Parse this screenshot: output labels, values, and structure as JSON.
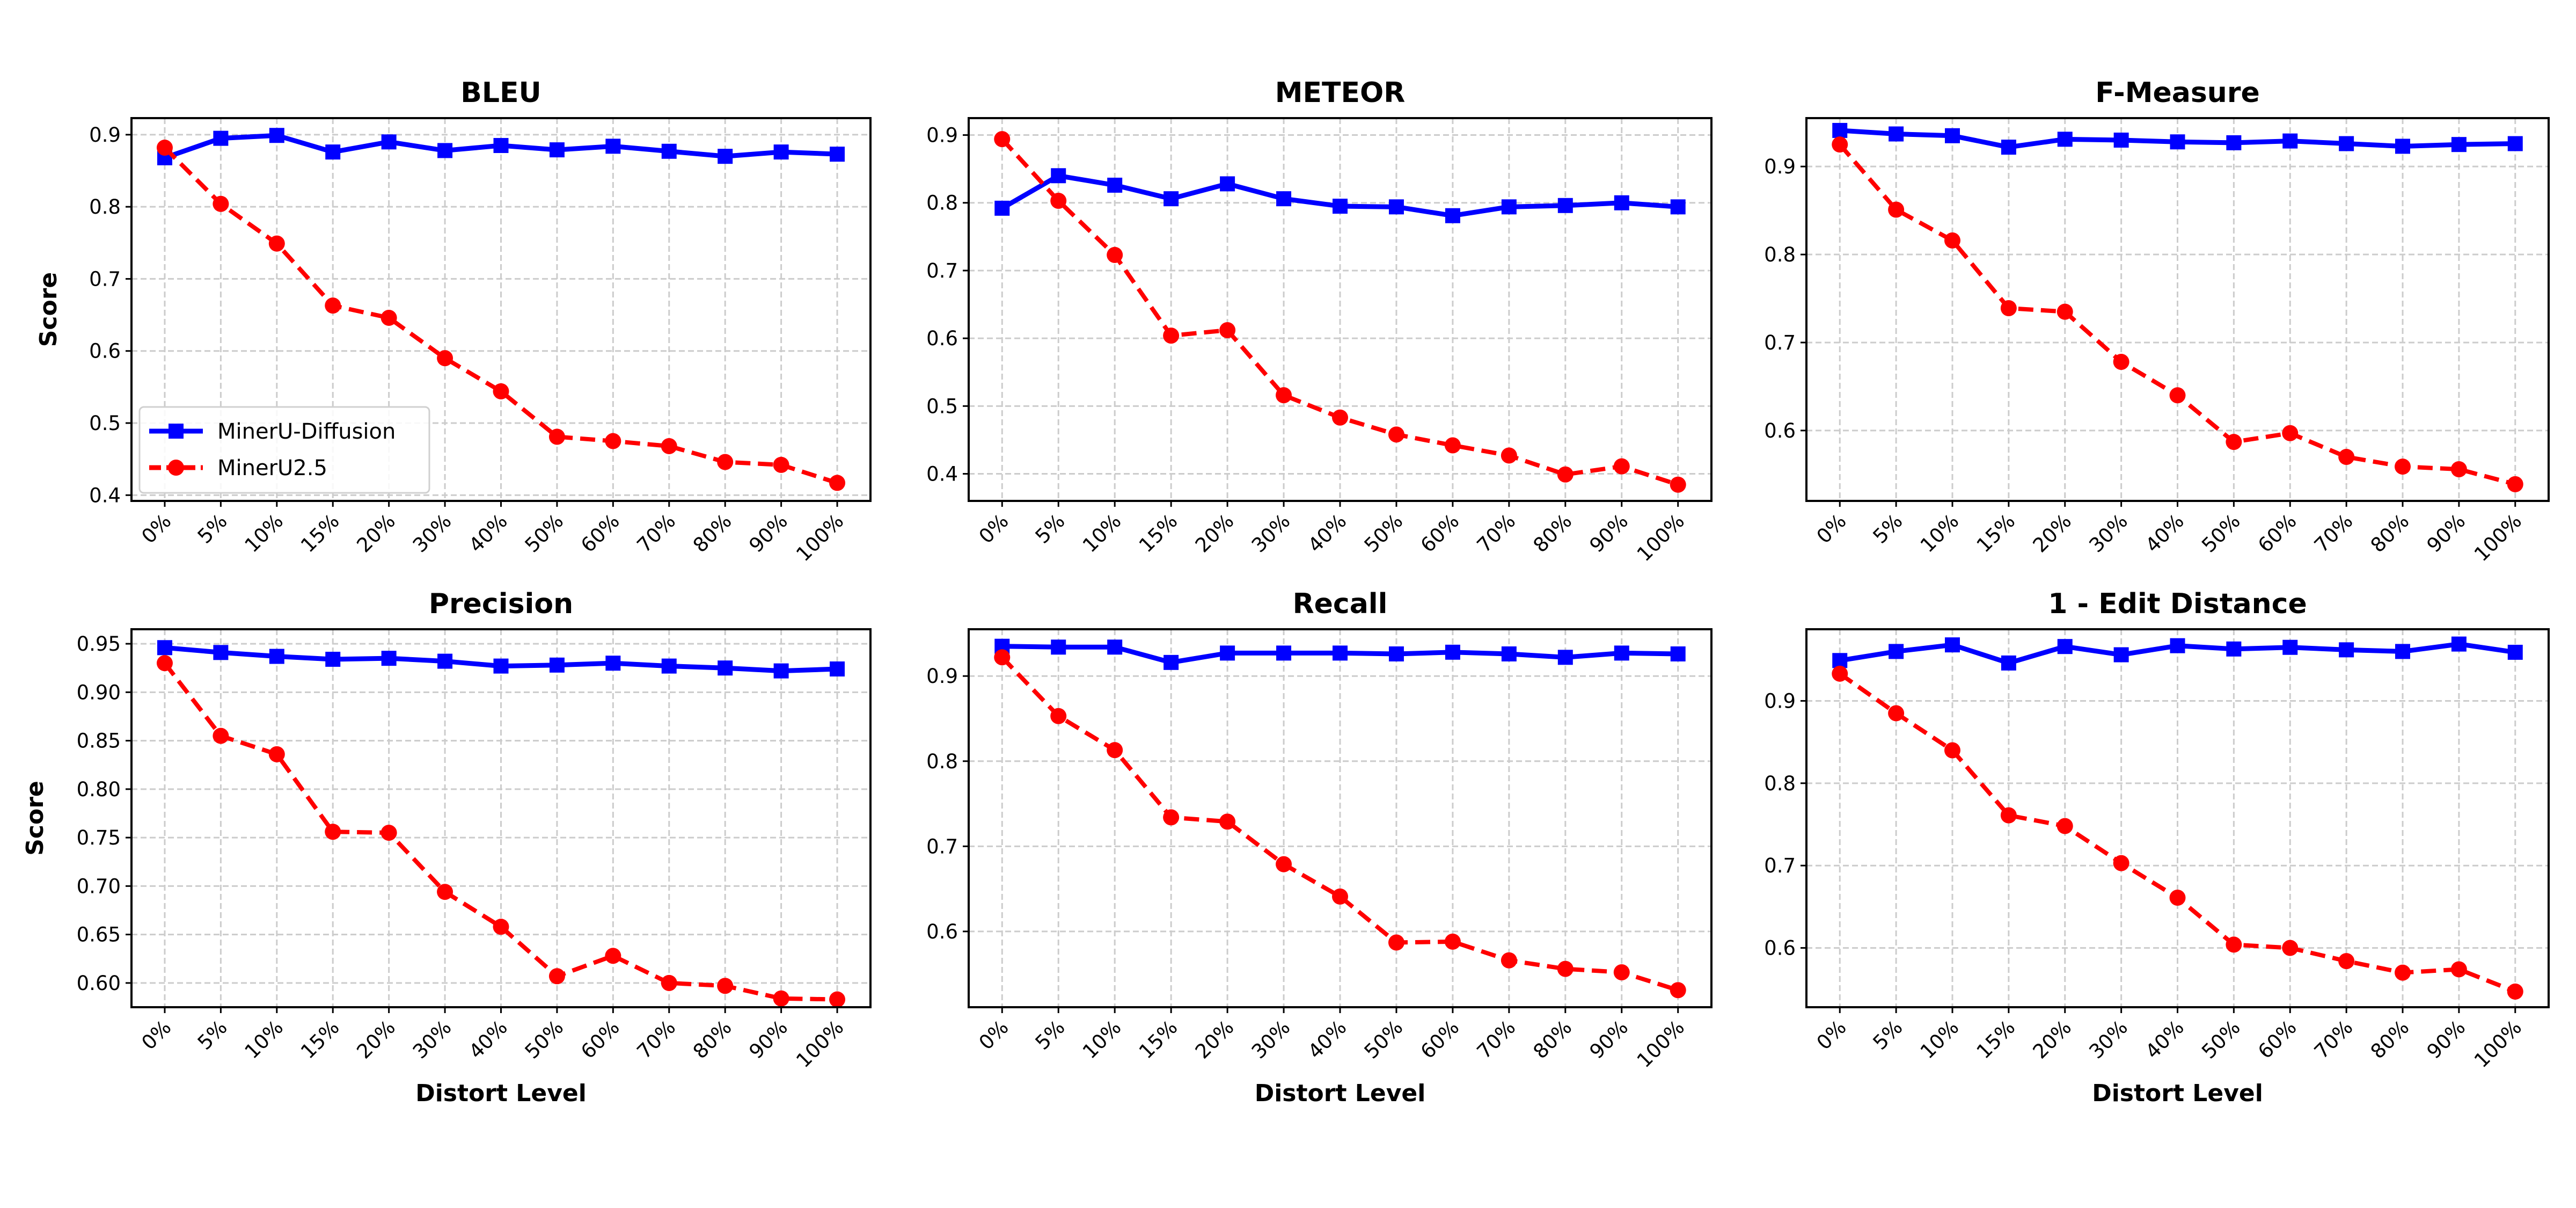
{
  "chart_data": [
    {
      "type": "line",
      "title": "BLEU",
      "xlabel": "",
      "ylabel": "Score",
      "ylim": [
        0.392,
        0.923
      ],
      "yticks": [
        0.4,
        0.5,
        0.6,
        0.7,
        0.8,
        0.9
      ],
      "ytick_labels": [
        "0.4",
        "0.5",
        "0.6",
        "0.7",
        "0.8",
        "0.9"
      ],
      "categories": [
        "0%",
        "5%",
        "10%",
        "15%",
        "20%",
        "30%",
        "40%",
        "50%",
        "60%",
        "70%",
        "80%",
        "90%",
        "100%"
      ],
      "series": [
        {
          "name": "MinerU-Diffusion",
          "values": [
            0.868,
            0.895,
            0.899,
            0.876,
            0.89,
            0.878,
            0.885,
            0.879,
            0.884,
            0.877,
            0.87,
            0.876,
            0.873
          ]
        },
        {
          "name": "MinerU2.5",
          "values": [
            0.882,
            0.804,
            0.749,
            0.663,
            0.646,
            0.59,
            0.544,
            0.481,
            0.475,
            0.468,
            0.446,
            0.442,
            0.417
          ]
        }
      ],
      "legend": "lower-left",
      "grid": true
    },
    {
      "type": "line",
      "title": "METEOR",
      "xlabel": "",
      "ylabel": "",
      "ylim": [
        0.36,
        0.925
      ],
      "yticks": [
        0.4,
        0.5,
        0.6,
        0.7,
        0.8,
        0.9
      ],
      "ytick_labels": [
        "0.4",
        "0.5",
        "0.6",
        "0.7",
        "0.8",
        "0.9"
      ],
      "categories": [
        "0%",
        "5%",
        "10%",
        "15%",
        "20%",
        "30%",
        "40%",
        "50%",
        "60%",
        "70%",
        "80%",
        "90%",
        "100%"
      ],
      "series": [
        {
          "name": "MinerU-Diffusion",
          "values": [
            0.792,
            0.84,
            0.826,
            0.806,
            0.828,
            0.806,
            0.795,
            0.794,
            0.781,
            0.794,
            0.796,
            0.8,
            0.794
          ]
        },
        {
          "name": "MinerU2.5",
          "values": [
            0.894,
            0.803,
            0.723,
            0.604,
            0.612,
            0.516,
            0.483,
            0.458,
            0.442,
            0.427,
            0.399,
            0.411,
            0.384
          ]
        }
      ],
      "grid": true
    },
    {
      "type": "line",
      "title": "F-Measure",
      "xlabel": "",
      "ylabel": "",
      "ylim": [
        0.52,
        0.955
      ],
      "yticks": [
        0.6,
        0.7,
        0.8,
        0.9
      ],
      "ytick_labels": [
        "0.6",
        "0.7",
        "0.8",
        "0.9"
      ],
      "categories": [
        "0%",
        "5%",
        "10%",
        "15%",
        "20%",
        "30%",
        "40%",
        "50%",
        "60%",
        "70%",
        "80%",
        "90%",
        "100%"
      ],
      "series": [
        {
          "name": "MinerU-Diffusion",
          "values": [
            0.941,
            0.937,
            0.935,
            0.922,
            0.931,
            0.93,
            0.928,
            0.927,
            0.929,
            0.926,
            0.923,
            0.925,
            0.926
          ]
        },
        {
          "name": "MinerU2.5",
          "values": [
            0.925,
            0.851,
            0.816,
            0.739,
            0.735,
            0.678,
            0.64,
            0.587,
            0.597,
            0.57,
            0.559,
            0.556,
            0.539
          ]
        }
      ],
      "grid": true
    },
    {
      "type": "line",
      "title": "Precision",
      "xlabel": "Distort Level",
      "ylabel": "Score",
      "ylim": [
        0.575,
        0.965
      ],
      "yticks": [
        0.6,
        0.65,
        0.7,
        0.75,
        0.8,
        0.85,
        0.9,
        0.95
      ],
      "ytick_labels": [
        "0.60",
        "0.65",
        "0.70",
        "0.75",
        "0.80",
        "0.85",
        "0.90",
        "0.95"
      ],
      "categories": [
        "0%",
        "5%",
        "10%",
        "15%",
        "20%",
        "30%",
        "40%",
        "50%",
        "60%",
        "70%",
        "80%",
        "90%",
        "100%"
      ],
      "series": [
        {
          "name": "MinerU-Diffusion",
          "values": [
            0.946,
            0.941,
            0.937,
            0.934,
            0.935,
            0.932,
            0.927,
            0.928,
            0.93,
            0.927,
            0.925,
            0.922,
            0.924
          ]
        },
        {
          "name": "MinerU2.5",
          "values": [
            0.93,
            0.855,
            0.836,
            0.756,
            0.755,
            0.694,
            0.658,
            0.607,
            0.628,
            0.6,
            0.597,
            0.584,
            0.583
          ]
        }
      ],
      "grid": true
    },
    {
      "type": "line",
      "title": "Recall",
      "xlabel": "Distort Level",
      "ylabel": "",
      "ylim": [
        0.511,
        0.955
      ],
      "yticks": [
        0.6,
        0.7,
        0.8,
        0.9
      ],
      "ytick_labels": [
        "0.6",
        "0.7",
        "0.8",
        "0.9"
      ],
      "categories": [
        "0%",
        "5%",
        "10%",
        "15%",
        "20%",
        "30%",
        "40%",
        "50%",
        "60%",
        "70%",
        "80%",
        "90%",
        "100%"
      ],
      "series": [
        {
          "name": "MinerU-Diffusion",
          "values": [
            0.935,
            0.934,
            0.934,
            0.916,
            0.927,
            0.927,
            0.927,
            0.926,
            0.928,
            0.926,
            0.922,
            0.927,
            0.926
          ]
        },
        {
          "name": "MinerU2.5",
          "values": [
            0.922,
            0.853,
            0.813,
            0.734,
            0.729,
            0.679,
            0.641,
            0.587,
            0.588,
            0.566,
            0.556,
            0.552,
            0.531
          ]
        }
      ],
      "grid": true
    },
    {
      "type": "line",
      "title": "1 - Edit Distance",
      "xlabel": "Distort Level",
      "ylabel": "",
      "ylim": [
        0.528,
        0.987
      ],
      "yticks": [
        0.6,
        0.7,
        0.8,
        0.9
      ],
      "ytick_labels": [
        "0.6",
        "0.7",
        "0.8",
        "0.9"
      ],
      "categories": [
        "0%",
        "5%",
        "10%",
        "15%",
        "20%",
        "30%",
        "40%",
        "50%",
        "60%",
        "70%",
        "80%",
        "90%",
        "100%"
      ],
      "series": [
        {
          "name": "MinerU-Diffusion",
          "values": [
            0.949,
            0.96,
            0.968,
            0.946,
            0.966,
            0.956,
            0.967,
            0.963,
            0.965,
            0.962,
            0.96,
            0.969,
            0.959
          ]
        },
        {
          "name": "MinerU2.5",
          "values": [
            0.933,
            0.885,
            0.84,
            0.761,
            0.748,
            0.703,
            0.661,
            0.604,
            0.6,
            0.584,
            0.57,
            0.574,
            0.547
          ]
        }
      ],
      "grid": true
    }
  ],
  "colors": {
    "MinerU-Diffusion": "#0000ff",
    "MinerU2.5": "#ff0000",
    "grid": "#cccccc"
  },
  "markers": {
    "MinerU-Diffusion": "square",
    "MinerU2.5": "circle"
  }
}
